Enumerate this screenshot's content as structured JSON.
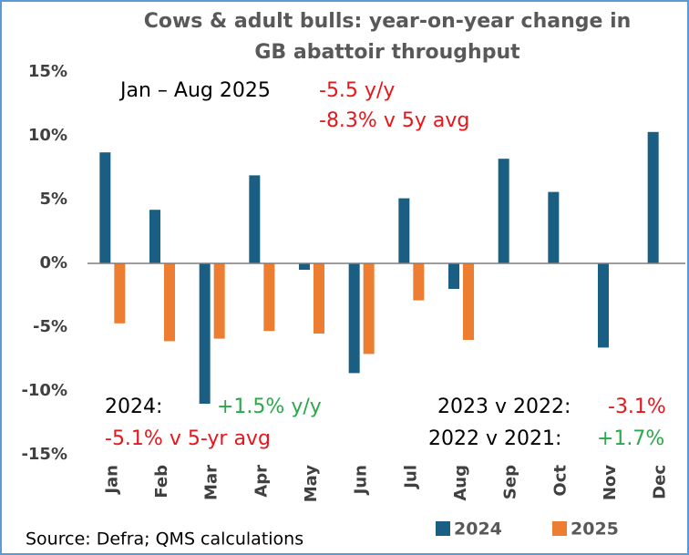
{
  "chart_data": {
    "type": "bar",
    "title": [
      "Cows & adult bulls: year-on-year change in",
      "GB abattoir throughput"
    ],
    "categories": [
      "Jan",
      "Feb",
      "Mar",
      "Apr",
      "May",
      "Jun",
      "Jul",
      "Aug",
      "Sep",
      "Oct",
      "Nov",
      "Dec"
    ],
    "series": [
      {
        "name": "2024",
        "color": "#1b5e83",
        "values": [
          8.7,
          4.2,
          -11.0,
          6.9,
          -0.5,
          -8.6,
          5.1,
          -2.0,
          8.2,
          5.6,
          -6.6,
          10.3
        ]
      },
      {
        "name": "2025",
        "color": "#ed7d31",
        "values": [
          -4.7,
          -6.1,
          -5.9,
          -5.3,
          -5.5,
          -7.1,
          -2.9,
          -6.0,
          null,
          null,
          null,
          null
        ]
      }
    ],
    "ylim": [
      -15,
      15
    ],
    "yticks": [
      {
        "value": 15,
        "label": "15%"
      },
      {
        "value": 10,
        "label": "10%"
      },
      {
        "value": 5,
        "label": "5%"
      },
      {
        "value": 0,
        "label": "0%"
      },
      {
        "value": -5,
        "label": "-5%"
      },
      {
        "value": -10,
        "label": "-10%"
      },
      {
        "value": -15,
        "label": "-15%"
      }
    ],
    "grid": false,
    "annotations": [
      {
        "text": "Jan – Aug 2025",
        "color": "#000000"
      },
      {
        "text": "-5.5 y/y",
        "color": "#e8161b"
      },
      {
        "text": "-8.3% v 5y avg",
        "color": "#e8161b"
      },
      {
        "text": "2024:",
        "color": "#000000"
      },
      {
        "text": "+1.5% y/y",
        "color": "#2aa84a"
      },
      {
        "text": "-5.1% v 5-yr avg",
        "color": "#e8161b"
      },
      {
        "text": "2023 v 2022:",
        "color": "#000000"
      },
      {
        "text": "-3.1%",
        "color": "#e8161b"
      },
      {
        "text": "2022 v 2021:",
        "color": "#000000"
      },
      {
        "text": "+1.7%",
        "color": "#2aa84a"
      }
    ],
    "source": "Source: Defra; QMS calculations",
    "legend": "bottom"
  }
}
